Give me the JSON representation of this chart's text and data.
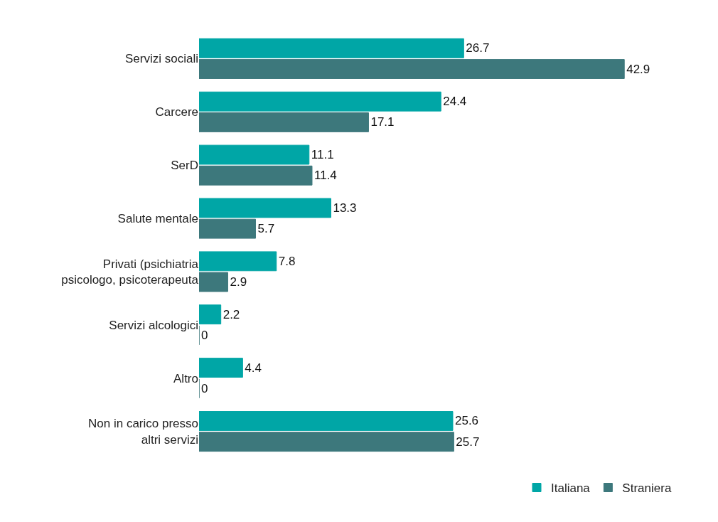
{
  "chart_data": {
    "type": "bar",
    "orientation": "horizontal",
    "categories": [
      "Servizi sociali",
      "Carcere",
      "SerD",
      "Salute mentale",
      "Privati (psichiatria\npsicologo, psicoterapeuta",
      "Servizi alcologici",
      "Altro",
      "Non in carico presso\naltri servizi"
    ],
    "series": [
      {
        "name": "Italiana",
        "color": "#00a6a6",
        "values": [
          26.7,
          24.4,
          11.1,
          13.3,
          7.8,
          2.2,
          4.4,
          25.6
        ]
      },
      {
        "name": "Straniera",
        "color": "#3d787c",
        "values": [
          42.9,
          17.1,
          11.4,
          5.7,
          2.9,
          0,
          0,
          25.7
        ]
      }
    ],
    "data_labels": true,
    "legend": "bottom right"
  }
}
